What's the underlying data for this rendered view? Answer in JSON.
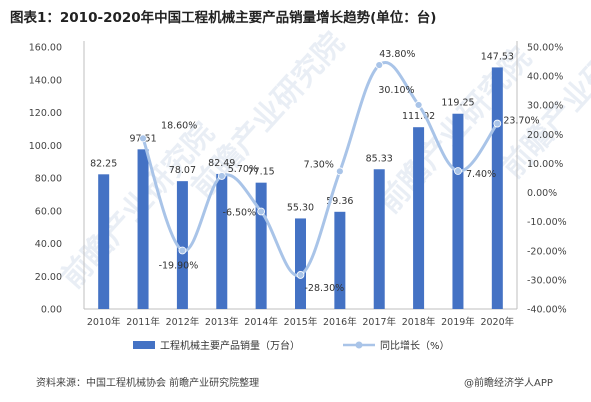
{
  "title": "图表1：2010-2020年中国工程机械主要产品销量增长趋势(单位：台)",
  "source": "资料来源：中国工程机械协会 前瞻产业研究院整理",
  "brand": "@前瞻经济学人APP",
  "watermark": "前瞻产业研究院",
  "colors": {
    "bar": "#4472c4",
    "line": "#a9c4e8",
    "marker": "#a9c4e8",
    "grid": "#d9d9d9"
  },
  "chart_data": {
    "type": "bar",
    "categories": [
      "2010年",
      "2011年",
      "2012年",
      "2013年",
      "2014年",
      "2015年",
      "2016年",
      "2017年",
      "2018年",
      "2019年",
      "2020年"
    ],
    "series": [
      {
        "name": "工程机械主要产品销量（万台）",
        "type": "bar",
        "axis": "left",
        "values": [
          82.25,
          97.51,
          78.07,
          82.49,
          77.15,
          55.3,
          59.36,
          85.33,
          111.02,
          119.25,
          147.53
        ],
        "labels": [
          "82.25",
          "97.51",
          "78.07",
          "82.49",
          "77.15",
          "55.30",
          "59.36",
          "85.33",
          "111.02",
          "119.25",
          "147.53"
        ]
      },
      {
        "name": "同比增长（%）",
        "type": "line",
        "axis": "right",
        "values": [
          null,
          18.6,
          -19.9,
          5.7,
          -6.5,
          -28.3,
          7.3,
          43.8,
          30.1,
          7.4,
          23.7
        ],
        "labels": [
          "",
          "18.60%",
          "-19.90%",
          "5.70%",
          "-6.50%",
          "-28.30%",
          "7.30%",
          "43.80%",
          "30.10%",
          "7.40%",
          "23.70%"
        ]
      }
    ],
    "y_left": {
      "min": 0,
      "max": 160,
      "step": 20,
      "ticks": [
        "0.00",
        "20.00",
        "40.00",
        "60.00",
        "80.00",
        "100.00",
        "120.00",
        "140.00",
        "160.00"
      ]
    },
    "y_right": {
      "min": -40,
      "max": 50,
      "step": 10,
      "ticks": [
        "-40.00%",
        "-30.00%",
        "-20.00%",
        "-10.00%",
        "0.00%",
        "10.00%",
        "20.00%",
        "30.00%",
        "40.00%",
        "50.00%"
      ]
    },
    "grid": false,
    "legend": "bottom"
  }
}
